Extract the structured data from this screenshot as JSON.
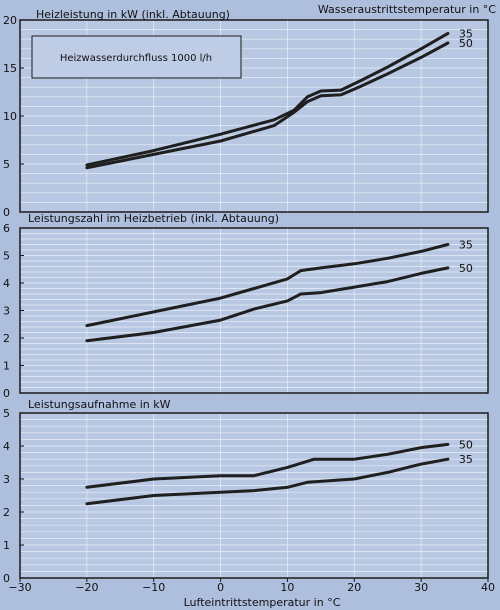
{
  "legend_title": "Wasseraustrittstemperatur in °C",
  "x_axis_label": "Lufteintrittstemperatur in °C",
  "note": "Heizwasserdurchfluss 1000 l/h",
  "colors": {
    "background": "#aebfdd",
    "plot_bg": "#b8c7e2",
    "grid": "#e8eef8",
    "frame": "#1b1b1b",
    "line": "#1f1f1f",
    "note_box": "#bfcce6"
  },
  "chart_data": [
    {
      "type": "line",
      "title": "Heizleistung in kW (inkl. Abtauung)",
      "xlabel": "",
      "ylabel": "",
      "xlim": [
        -30,
        40
      ],
      "ylim": [
        0,
        20
      ],
      "x_ticks": [
        -30,
        -20,
        -10,
        0,
        10,
        20,
        30,
        40
      ],
      "y_ticks": [
        0,
        5,
        10,
        15,
        20
      ],
      "grid": true,
      "series": [
        {
          "name": "35",
          "points": [
            [
              -20,
              4.9
            ],
            [
              -10,
              6.4
            ],
            [
              0,
              8.1
            ],
            [
              8,
              9.6
            ],
            [
              11,
              10.6
            ],
            [
              13,
              12.0
            ],
            [
              15,
              12.6
            ],
            [
              18,
              12.7
            ],
            [
              21,
              13.7
            ],
            [
              25,
              15.1
            ],
            [
              30,
              17.0
            ],
            [
              34,
              18.6
            ]
          ]
        },
        {
          "name": "50",
          "points": [
            [
              -20,
              4.6
            ],
            [
              -10,
              6.0
            ],
            [
              0,
              7.4
            ],
            [
              8,
              9.0
            ],
            [
              11,
              10.4
            ],
            [
              13,
              11.5
            ],
            [
              15,
              12.1
            ],
            [
              18,
              12.2
            ],
            [
              21,
              13.1
            ],
            [
              25,
              14.4
            ],
            [
              30,
              16.1
            ],
            [
              34,
              17.6
            ]
          ]
        }
      ]
    },
    {
      "type": "line",
      "title": "Leistungszahl im Heizbetrieb (inkl. Abtauung)",
      "xlabel": "",
      "ylabel": "",
      "xlim": [
        -30,
        40
      ],
      "ylim": [
        0,
        6
      ],
      "x_ticks": [
        -30,
        -20,
        -10,
        0,
        10,
        20,
        30,
        40
      ],
      "y_ticks": [
        0,
        1,
        2,
        3,
        4,
        5,
        6
      ],
      "grid": true,
      "series": [
        {
          "name": "35",
          "points": [
            [
              -20,
              2.45
            ],
            [
              -10,
              2.95
            ],
            [
              0,
              3.45
            ],
            [
              5,
              3.8
            ],
            [
              10,
              4.15
            ],
            [
              12,
              4.45
            ],
            [
              15,
              4.55
            ],
            [
              20,
              4.7
            ],
            [
              25,
              4.9
            ],
            [
              30,
              5.15
            ],
            [
              34,
              5.4
            ]
          ]
        },
        {
          "name": "50",
          "points": [
            [
              -20,
              1.9
            ],
            [
              -10,
              2.2
            ],
            [
              0,
              2.65
            ],
            [
              5,
              3.05
            ],
            [
              10,
              3.35
            ],
            [
              12,
              3.6
            ],
            [
              15,
              3.65
            ],
            [
              20,
              3.85
            ],
            [
              25,
              4.05
            ],
            [
              30,
              4.35
            ],
            [
              34,
              4.55
            ]
          ]
        }
      ]
    },
    {
      "type": "line",
      "title": "Leistungsaufnahme in kW",
      "xlabel": "Lufteintrittstemperatur in °C",
      "ylabel": "",
      "xlim": [
        -30,
        40
      ],
      "ylim": [
        0,
        5
      ],
      "x_ticks": [
        -30,
        -20,
        -10,
        0,
        10,
        20,
        30,
        40
      ],
      "y_ticks": [
        0,
        1,
        2,
        3,
        4,
        5
      ],
      "grid": true,
      "series": [
        {
          "name": "50",
          "points": [
            [
              -20,
              2.75
            ],
            [
              -10,
              3.0
            ],
            [
              0,
              3.1
            ],
            [
              5,
              3.1
            ],
            [
              10,
              3.35
            ],
            [
              14,
              3.6
            ],
            [
              20,
              3.6
            ],
            [
              25,
              3.75
            ],
            [
              30,
              3.95
            ],
            [
              34,
              4.05
            ]
          ]
        },
        {
          "name": "35",
          "points": [
            [
              -20,
              2.25
            ],
            [
              -10,
              2.5
            ],
            [
              0,
              2.6
            ],
            [
              5,
              2.65
            ],
            [
              10,
              2.75
            ],
            [
              13,
              2.9
            ],
            [
              20,
              3.0
            ],
            [
              25,
              3.2
            ],
            [
              30,
              3.45
            ],
            [
              34,
              3.6
            ]
          ]
        }
      ]
    }
  ]
}
